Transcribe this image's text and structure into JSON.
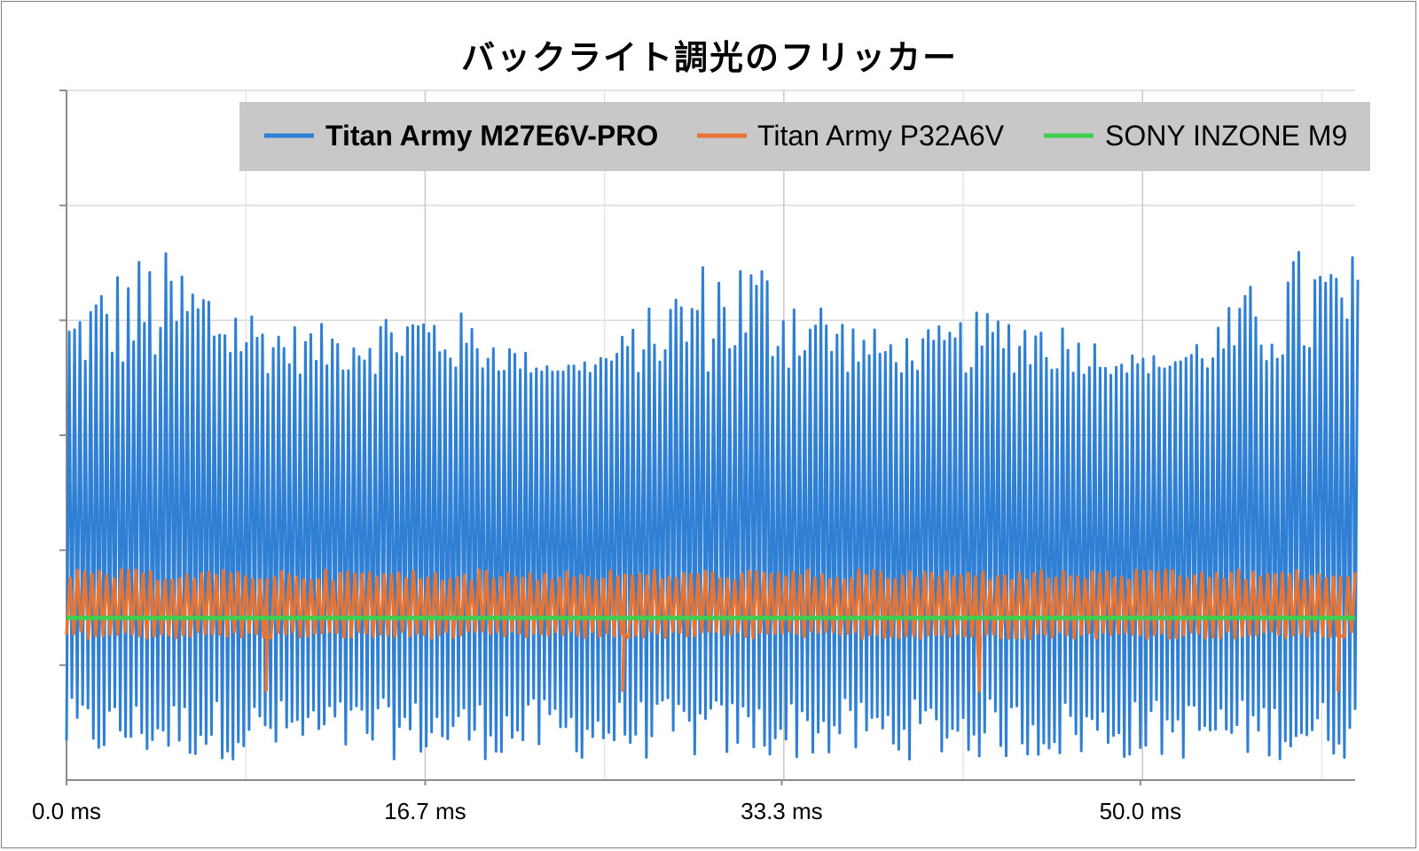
{
  "chart_data": {
    "type": "line",
    "title": "バックライト調光のフリッカー",
    "xlabel": "",
    "ylabel": "",
    "x_unit": "ms",
    "xlim": [
      0,
      60
    ],
    "x_ticks": [
      "0.0 ms",
      "16.7 ms",
      "33.3 ms",
      "50.0 ms"
    ],
    "x_tick_values": [
      0,
      16.7,
      33.3,
      50.0
    ],
    "y_tick_labels_shown": false,
    "grid": true,
    "legend_position": "top-right",
    "series": [
      {
        "name": "Titan Army M27E6V-PRO",
        "color": "#2f80d4",
        "bold_in_legend": true,
        "description_values": {
          "waveform": "high-frequency PWM-like oscillation",
          "peak_level_range": [
            0.35,
            0.78
          ],
          "trough_level_range": [
            0.03,
            0.12
          ]
        }
      },
      {
        "name": "Titan Army P32A6V",
        "color": "#e87433",
        "bold_in_legend": false,
        "description_values": {
          "waveform": "small ripple",
          "band_level_range": [
            0.2,
            0.31
          ],
          "dip_times_ms": [
            9.3,
            25.9,
            42.5,
            59.2
          ],
          "dip_level": 0.13
        }
      },
      {
        "name": "SONY INZONE M9",
        "color": "#3fcf4f",
        "bold_in_legend": false,
        "description_values": {
          "waveform": "flat",
          "level": 0.235
        }
      }
    ]
  }
}
